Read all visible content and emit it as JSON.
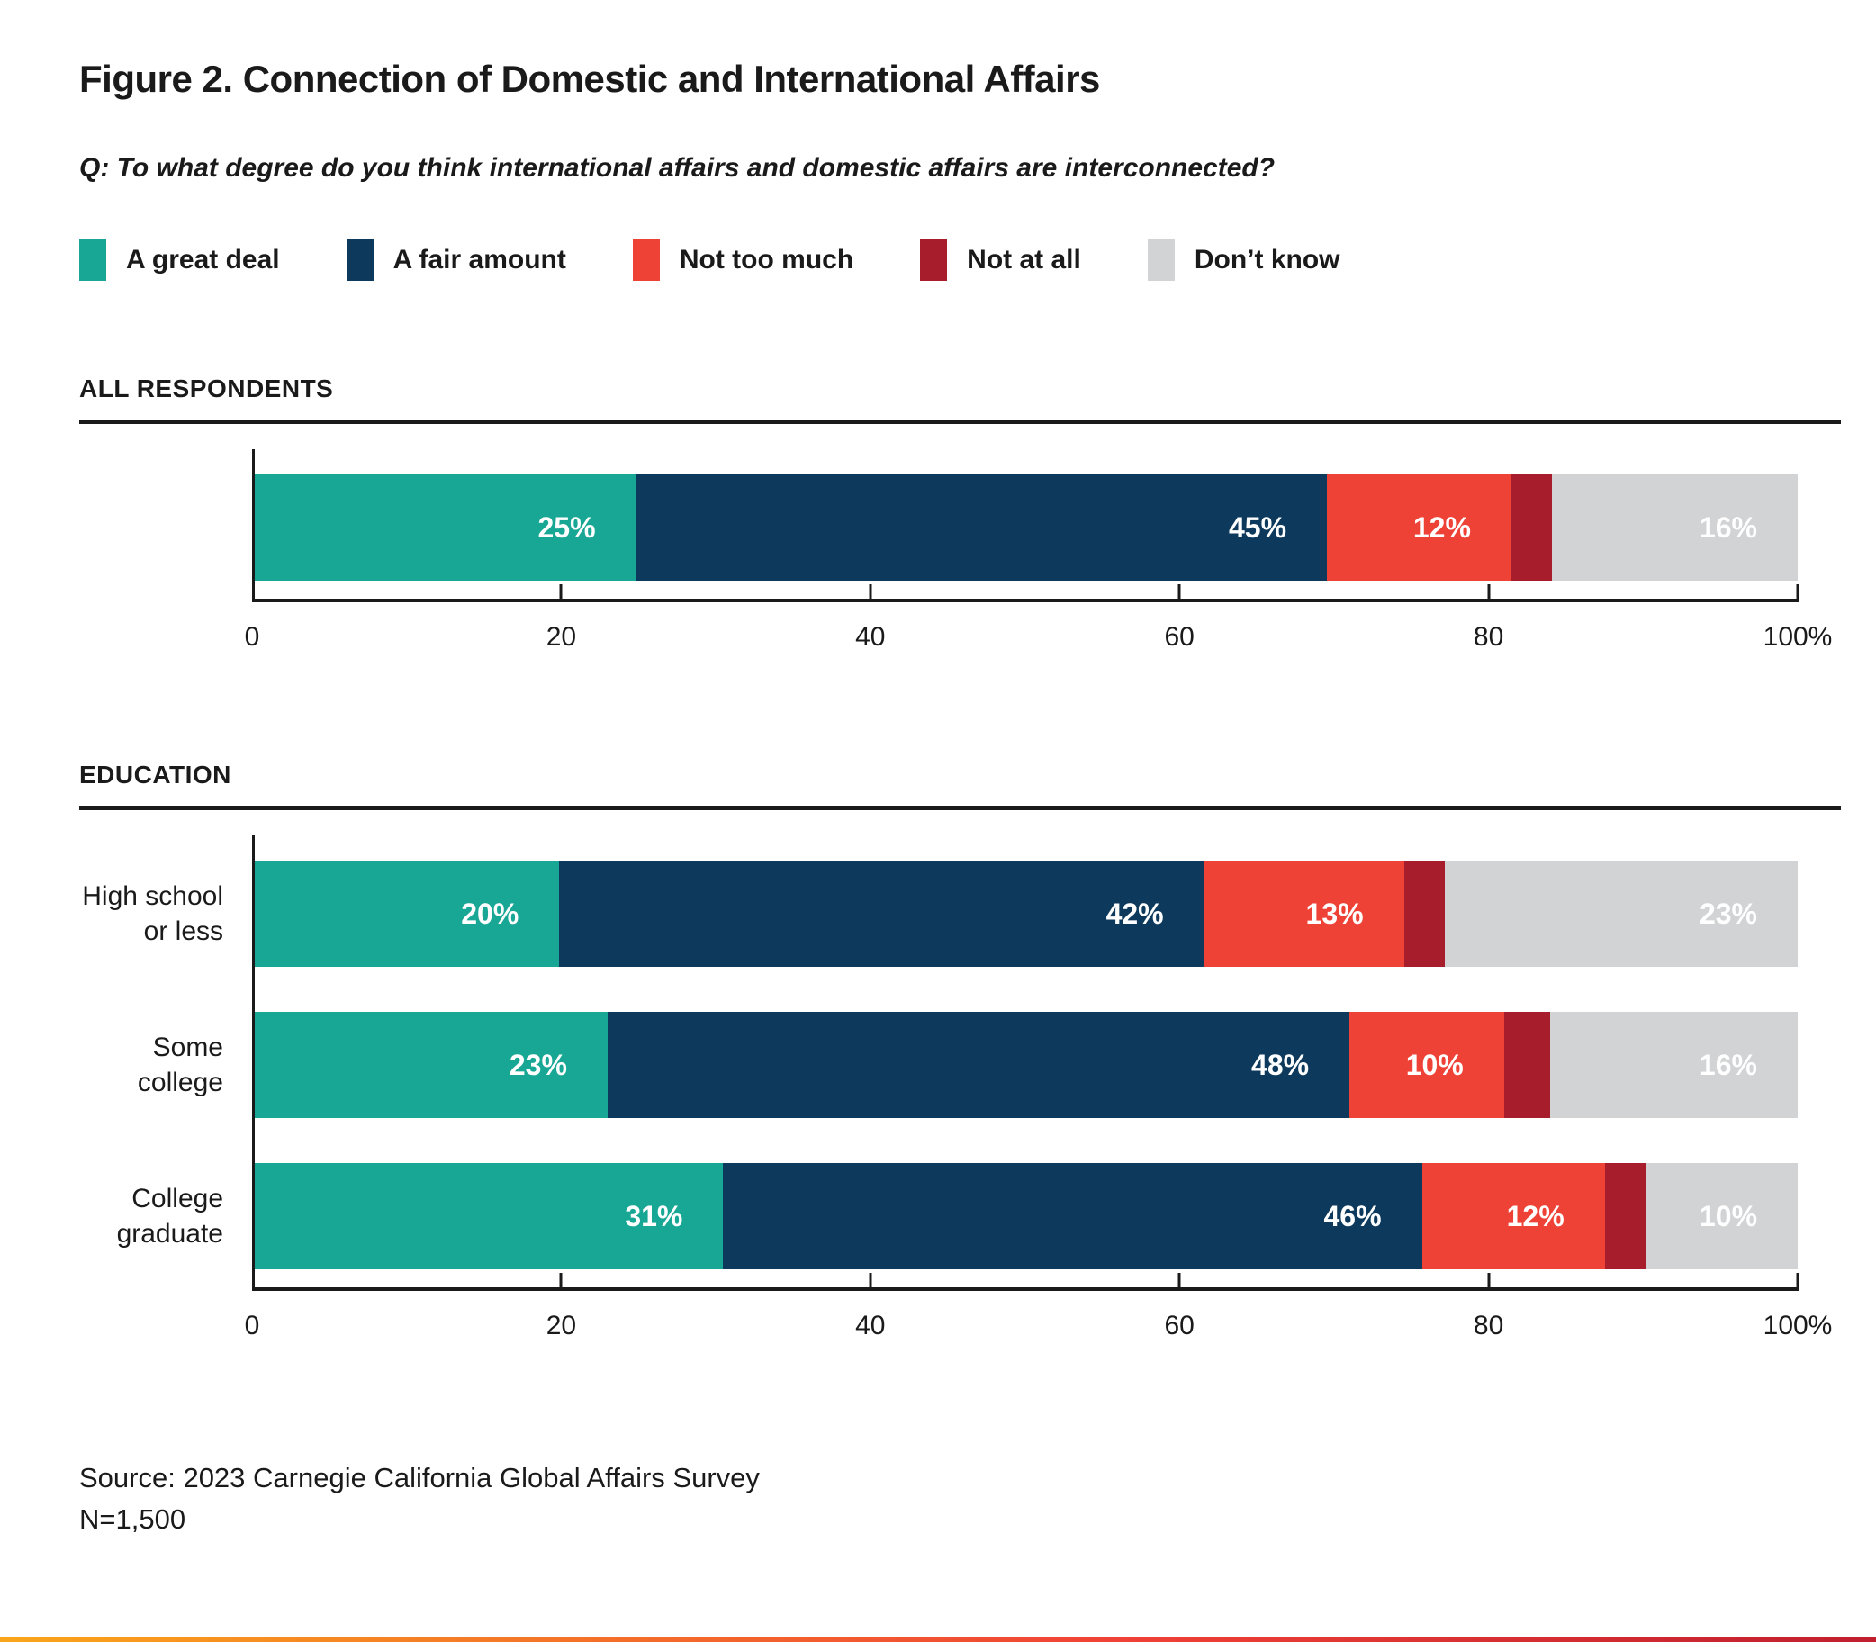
{
  "figure": {
    "title": "Figure 2. Connection of Domestic and International Affairs",
    "question": "Q: To what degree do you think international affairs and domestic affairs are interconnected?",
    "source": "Source: 2023 Carnegie California Global Affairs Survey",
    "sample_size": "N=1,500"
  },
  "colors": {
    "text": "#1a1a1a",
    "rule": "#1a1a1a",
    "a_great_deal": "#19A795",
    "a_fair_amount": "#0D3A5C",
    "not_too_much": "#EF4237",
    "not_at_all": "#A81D2B",
    "dont_know": "#D2D3D4",
    "accent_gradient": [
      "#F9A51A",
      "#EF4136",
      "#C01F2E"
    ]
  },
  "chart_data": {
    "type": "bar",
    "variant": "horizontal-stacked-100",
    "unit": "percent",
    "xlim": [
      0,
      100
    ],
    "x_tick_values": [
      0,
      20,
      40,
      60,
      80,
      100
    ],
    "x_tick_labels": [
      "0",
      "20",
      "40",
      "60",
      "80",
      "100%"
    ],
    "series_names": [
      "A great deal",
      "A fair amount",
      "Not too much",
      "Not at all",
      "Don’t know"
    ],
    "series_color_keys": [
      "a_great_deal",
      "a_fair_amount",
      "not_too_much",
      "not_at_all",
      "dont_know"
    ],
    "sections": [
      {
        "header": "ALL RESPONDENTS",
        "rows": [
          {
            "category_lines": [],
            "values": [
              25,
              45,
              12,
              2,
              16
            ],
            "value_labels": [
              "25%",
              "45%",
              "12%",
              "",
              "16%"
            ]
          }
        ]
      },
      {
        "header": "EDUCATION",
        "rows": [
          {
            "category_lines": [
              "High school",
              "or less"
            ],
            "values": [
              20,
              42,
              13,
              2,
              23
            ],
            "value_labels": [
              "20%",
              "42%",
              "13%",
              "",
              "23%"
            ]
          },
          {
            "category_lines": [
              "Some college"
            ],
            "values": [
              23,
              48,
              10,
              3,
              16
            ],
            "value_labels": [
              "23%",
              "48%",
              "10%",
              "",
              "16%"
            ]
          },
          {
            "category_lines": [
              "College",
              "graduate"
            ],
            "values": [
              31,
              46,
              12,
              1,
              10
            ],
            "value_labels": [
              "31%",
              "46%",
              "12%",
              "",
              "10%"
            ]
          }
        ]
      }
    ],
    "legend_position": "top",
    "grid": false
  }
}
